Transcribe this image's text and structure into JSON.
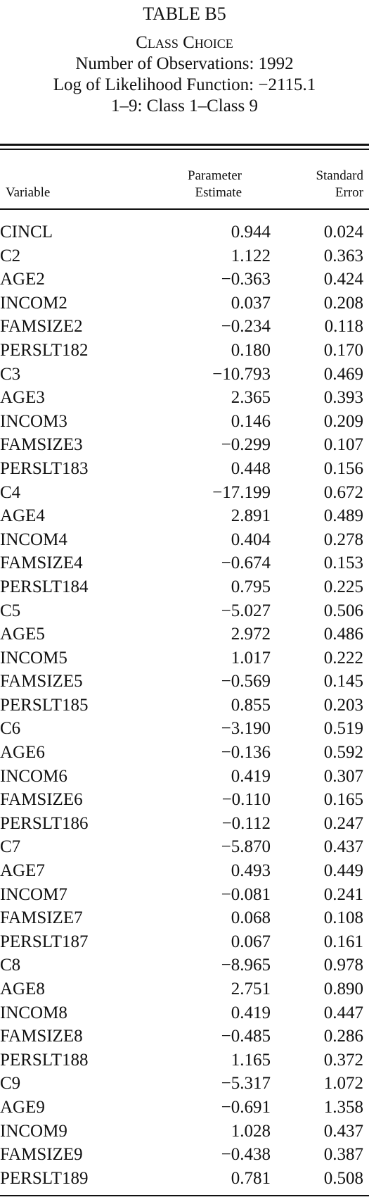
{
  "table": {
    "title": "TABLE B5",
    "subtitle": "Class Choice",
    "observations": "Number of Observations: 1992",
    "log_likelihood": "Log of Likelihood Function: −2115.1",
    "class_range": "1–9: Class 1–Class 9",
    "headers": {
      "variable": "Variable",
      "estimate_line1": "Parameter",
      "estimate_line2": "Estimate",
      "se_line1": "Standard",
      "se_line2": "Error"
    },
    "rows": [
      {
        "variable": "CINCL",
        "estimate": "0.944",
        "se": "0.024"
      },
      {
        "variable": "C2",
        "estimate": "1.122",
        "se": "0.363"
      },
      {
        "variable": "AGE2",
        "estimate": "−0.363",
        "se": "0.424"
      },
      {
        "variable": "INCOM2",
        "estimate": "0.037",
        "se": "0.208"
      },
      {
        "variable": "FAMSIZE2",
        "estimate": "−0.234",
        "se": "0.118"
      },
      {
        "variable": "PERSLT182",
        "estimate": "0.180",
        "se": "0.170"
      },
      {
        "variable": "C3",
        "estimate": "−10.793",
        "se": "0.469"
      },
      {
        "variable": "AGE3",
        "estimate": "2.365",
        "se": "0.393"
      },
      {
        "variable": "INCOM3",
        "estimate": "0.146",
        "se": "0.209"
      },
      {
        "variable": "FAMSIZE3",
        "estimate": "−0.299",
        "se": "0.107"
      },
      {
        "variable": "PERSLT183",
        "estimate": "0.448",
        "se": "0.156"
      },
      {
        "variable": "C4",
        "estimate": "−17.199",
        "se": "0.672"
      },
      {
        "variable": "AGE4",
        "estimate": "2.891",
        "se": "0.489"
      },
      {
        "variable": "INCOM4",
        "estimate": "0.404",
        "se": "0.278"
      },
      {
        "variable": "FAMSIZE4",
        "estimate": "−0.674",
        "se": "0.153"
      },
      {
        "variable": "PERSLT184",
        "estimate": "0.795",
        "se": "0.225"
      },
      {
        "variable": "C5",
        "estimate": "−5.027",
        "se": "0.506"
      },
      {
        "variable": "AGE5",
        "estimate": "2.972",
        "se": "0.486"
      },
      {
        "variable": "INCOM5",
        "estimate": "1.017",
        "se": "0.222"
      },
      {
        "variable": "FAMSIZE5",
        "estimate": "−0.569",
        "se": "0.145"
      },
      {
        "variable": "PERSLT185",
        "estimate": "0.855",
        "se": "0.203"
      },
      {
        "variable": "C6",
        "estimate": "−3.190",
        "se": "0.519"
      },
      {
        "variable": "AGE6",
        "estimate": "−0.136",
        "se": "0.592"
      },
      {
        "variable": "INCOM6",
        "estimate": "0.419",
        "se": "0.307"
      },
      {
        "variable": "FAMSIZE6",
        "estimate": "−0.110",
        "se": "0.165"
      },
      {
        "variable": "PERSLT186",
        "estimate": "−0.112",
        "se": "0.247"
      },
      {
        "variable": "C7",
        "estimate": "−5.870",
        "se": "0.437"
      },
      {
        "variable": "AGE7",
        "estimate": "0.493",
        "se": "0.449"
      },
      {
        "variable": "INCOM7",
        "estimate": "−0.081",
        "se": "0.241"
      },
      {
        "variable": "FAMSIZE7",
        "estimate": "0.068",
        "se": "0.108"
      },
      {
        "variable": "PERSLT187",
        "estimate": "0.067",
        "se": "0.161"
      },
      {
        "variable": "C8",
        "estimate": "−8.965",
        "se": "0.978"
      },
      {
        "variable": "AGE8",
        "estimate": "2.751",
        "se": "0.890"
      },
      {
        "variable": "INCOM8",
        "estimate": "0.419",
        "se": "0.447"
      },
      {
        "variable": "FAMSIZE8",
        "estimate": "−0.485",
        "se": "0.286"
      },
      {
        "variable": "PERSLT188",
        "estimate": "1.165",
        "se": "0.372"
      },
      {
        "variable": "C9",
        "estimate": "−5.317",
        "se": "1.072"
      },
      {
        "variable": "AGE9",
        "estimate": "−0.691",
        "se": "1.358"
      },
      {
        "variable": "INCOM9",
        "estimate": "1.028",
        "se": "0.437"
      },
      {
        "variable": "FAMSIZE9",
        "estimate": "−0.438",
        "se": "0.387"
      },
      {
        "variable": "PERSLT189",
        "estimate": "0.781",
        "se": "0.508"
      }
    ]
  }
}
